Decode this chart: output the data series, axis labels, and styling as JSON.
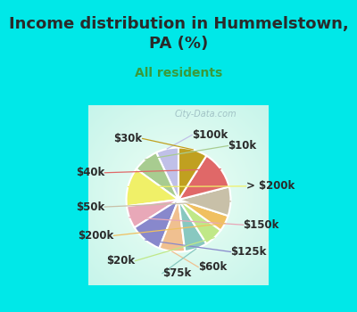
{
  "title": "Income distribution in Hummelstown,\nPA (%)",
  "subtitle": "All residents",
  "labels": [
    "$100k",
    "$10k",
    "> $200k",
    "$150k",
    "$125k",
    "$60k",
    "$75k",
    "$20k",
    "$200k",
    "$50k",
    "$40k",
    "$30k"
  ],
  "values": [
    7,
    8,
    12,
    7,
    10,
    8,
    7,
    6,
    5,
    9,
    12,
    9
  ],
  "colors": [
    "#c0c0e8",
    "#a8cc90",
    "#f0f068",
    "#e8a8b8",
    "#8888cc",
    "#f0c090",
    "#88c8c0",
    "#c0e888",
    "#f0c060",
    "#c8c0a8",
    "#e06868",
    "#c0a020"
  ],
  "bg_color": "#00e8e8",
  "chart_bg": "#d8f0e8",
  "title_color": "#2a2a2a",
  "subtitle_color": "#3a9a3a",
  "watermark": "City-Data.com",
  "label_color": "#2a2a2a",
  "startangle": 90,
  "title_fontsize": 13,
  "subtitle_fontsize": 10,
  "label_fontsize": 8.5
}
